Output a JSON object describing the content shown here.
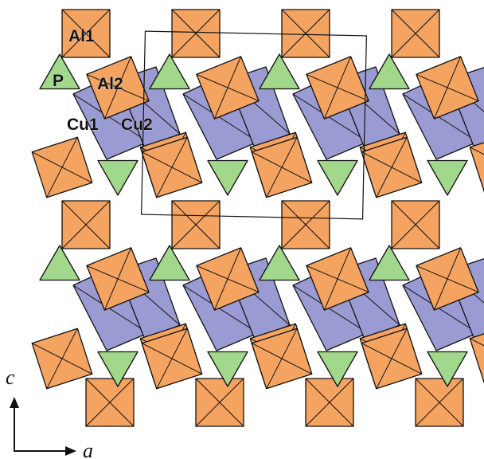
{
  "colors": {
    "al_octahedra": "#F4A460",
    "cu_polyhedra": "#9B9BD3",
    "p_tetrahedra": "#A2D88C",
    "outline": "#111111"
  },
  "labels": {
    "al1": "Al1",
    "al2": "Al2",
    "p": "P",
    "cu1": "Cu1",
    "cu2": "Cu2"
  },
  "axes": {
    "vertical": "c",
    "horizontal": "a"
  }
}
